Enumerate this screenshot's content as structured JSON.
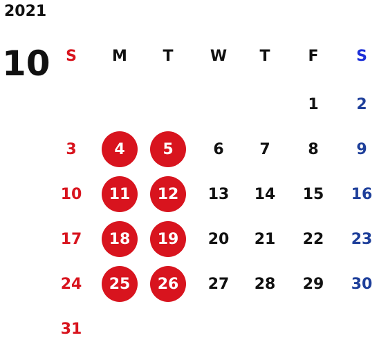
{
  "year": "2021",
  "month": "10",
  "weekdays": [
    "S",
    "M",
    "T",
    "W",
    "T",
    "F",
    "S"
  ],
  "weeks": [
    [
      "",
      "",
      "",
      "",
      "",
      "1",
      "2"
    ],
    [
      "3",
      "4",
      "5",
      "6",
      "7",
      "8",
      "9"
    ],
    [
      "10",
      "11",
      "12",
      "13",
      "14",
      "15",
      "16"
    ],
    [
      "17",
      "18",
      "19",
      "20",
      "21",
      "22",
      "23"
    ],
    [
      "24",
      "25",
      "26",
      "27",
      "28",
      "29",
      "30"
    ],
    [
      "31",
      "",
      "",
      "",
      "",
      "",
      ""
    ]
  ],
  "highlighted_days": [
    "4",
    "5",
    "11",
    "12",
    "18",
    "19",
    "25",
    "26"
  ],
  "colors": {
    "sunday": "#d8141e",
    "saturday": "#1e3f9a",
    "saturday_header": "#1c2fd8",
    "weekday": "#111111",
    "highlight_fill": "#d8141e",
    "highlight_text": "#ffffff"
  }
}
